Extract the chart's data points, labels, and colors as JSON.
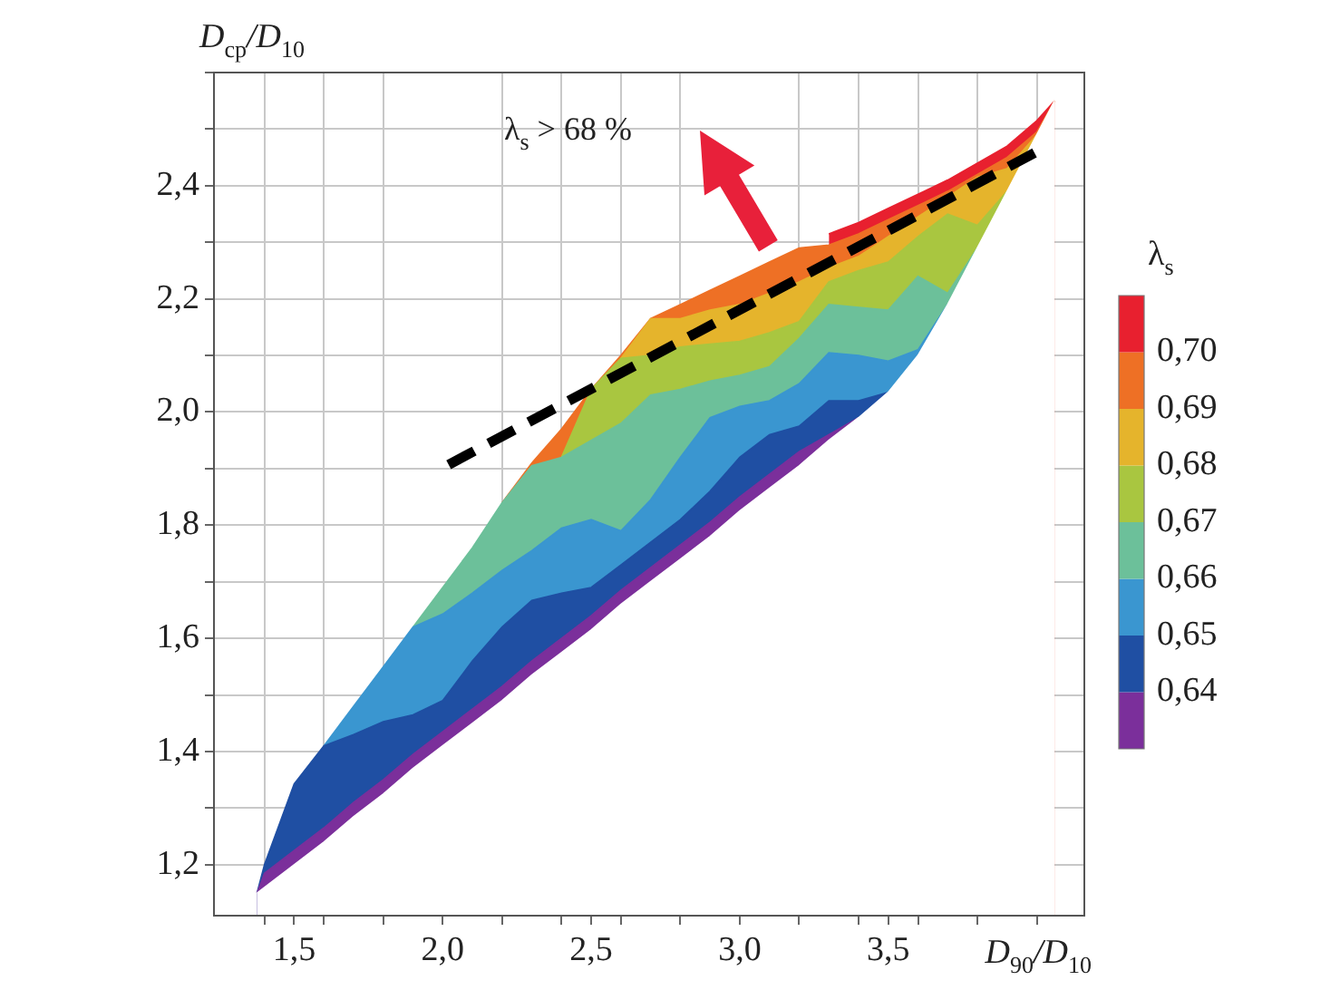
{
  "chart_data": {
    "type": "area",
    "xlabel": "D$_{90}$/D$_{10}$",
    "ylabel": "D$_{cp}$/D$_{10}$",
    "clabel": "λ$_{s}$",
    "annotations": [
      "λ$_{s}$ > 68 %"
    ],
    "x": [
      1.375,
      1.4,
      1.5,
      1.6,
      1.7,
      1.8,
      1.9,
      2.0,
      2.1,
      2.2,
      2.3,
      2.4,
      2.5,
      2.6,
      2.7,
      2.8,
      2.9,
      3.0,
      3.1,
      3.2,
      3.3,
      3.4,
      3.5,
      3.6,
      3.7,
      3.8,
      3.9,
      4.0,
      4.06
    ],
    "series": [
      {
        "color": "#ffffff",
        "values": [
          1.15,
          1.16,
          1.2,
          1.24,
          1.285,
          1.325,
          1.37,
          1.41,
          1.45,
          1.49,
          1.535,
          1.575,
          1.615,
          1.66,
          1.7,
          1.74,
          1.78,
          1.825,
          1.865,
          1.905,
          1.95,
          1.99,
          2.035,
          2.1,
          2.19,
          2.29,
          2.39,
          2.49,
          2.55
        ]
      },
      {
        "color": "#7b2f9b",
        "values": [
          1.15,
          1.185,
          1.225,
          1.265,
          1.31,
          1.35,
          1.395,
          1.435,
          1.475,
          1.515,
          1.56,
          1.6,
          1.64,
          1.685,
          1.725,
          1.765,
          1.805,
          1.85,
          1.89,
          1.93,
          1.96,
          1.99,
          null,
          null,
          null,
          null,
          null,
          null,
          null
        ]
      },
      {
        "color": "#1f4fa3",
        "values": [
          1.15,
          1.2,
          1.343,
          1.41,
          1.43,
          1.453,
          1.465,
          1.49,
          1.56,
          1.62,
          1.667,
          1.68,
          1.69,
          1.73,
          1.77,
          1.81,
          1.86,
          1.92,
          1.96,
          1.975,
          2.02,
          2.02,
          2.035,
          null,
          null,
          null,
          null,
          null,
          null
        ]
      },
      {
        "color": "#3a96d0",
        "values": [
          null,
          null,
          null,
          1.41,
          1.48,
          1.55,
          1.62,
          1.643,
          1.68,
          1.72,
          1.755,
          1.795,
          1.81,
          1.79,
          1.845,
          1.92,
          1.99,
          2.01,
          2.02,
          2.05,
          2.105,
          2.1,
          2.09,
          2.11,
          2.19,
          null,
          null,
          null,
          null
        ]
      },
      {
        "color": "#6cc09a",
        "values": [
          null,
          null,
          null,
          null,
          null,
          null,
          1.62,
          1.69,
          1.76,
          1.84,
          1.905,
          1.92,
          1.95,
          1.98,
          2.03,
          2.04,
          2.055,
          2.065,
          2.08,
          2.13,
          2.19,
          2.185,
          2.18,
          2.24,
          2.21,
          2.29,
          null,
          null,
          null
        ]
      },
      {
        "color": "#a9c640",
        "values": [
          null,
          null,
          null,
          null,
          null,
          null,
          null,
          null,
          null,
          null,
          null,
          1.92,
          2.04,
          2.095,
          2.1,
          2.115,
          2.12,
          2.125,
          2.14,
          2.16,
          2.23,
          2.25,
          2.265,
          2.31,
          2.35,
          2.33,
          2.39,
          null,
          null
        ]
      },
      {
        "color": "#e5b42c",
        "values": [
          null,
          null,
          null,
          null,
          null,
          null,
          null,
          null,
          null,
          null,
          null,
          null,
          null,
          2.095,
          2.165,
          2.165,
          2.18,
          2.19,
          2.21,
          2.23,
          2.255,
          2.275,
          2.31,
          2.345,
          2.38,
          2.415,
          2.43,
          2.49,
          null
        ]
      },
      {
        "color": "#ee7025",
        "values": [
          null,
          null,
          null,
          null,
          null,
          null,
          null,
          null,
          null,
          1.84,
          1.91,
          1.97,
          2.04,
          2.1,
          2.165,
          2.19,
          2.215,
          2.24,
          2.265,
          2.29,
          2.295,
          2.315,
          2.34,
          2.365,
          2.39,
          2.42,
          2.45,
          2.495,
          2.55
        ]
      },
      {
        "color": "#e8202f",
        "values": [
          null,
          null,
          null,
          null,
          null,
          null,
          null,
          null,
          null,
          null,
          null,
          null,
          null,
          null,
          null,
          null,
          null,
          null,
          null,
          null,
          2.315,
          2.335,
          2.36,
          2.385,
          2.41,
          2.44,
          2.47,
          2.515,
          2.55
        ]
      },
      {
        "type": "line",
        "color": "#000000",
        "line_style": "dashed",
        "x": [
          2.02,
          4.0
        ],
        "values": [
          1.907,
          2.46
        ]
      }
    ],
    "xlim": [
      1.23,
      4.16
    ],
    "xticks": [
      {
        "value": 1.4,
        "label": null
      },
      {
        "value": 1.5,
        "label": "1,5"
      },
      {
        "value": 1.6,
        "label": null
      },
      {
        "value": 1.8,
        "label": null
      },
      {
        "value": 2.0,
        "label": "2,0"
      },
      {
        "value": 2.2,
        "label": null
      },
      {
        "value": 2.4,
        "label": null
      },
      {
        "value": 2.5,
        "label": "2,5"
      },
      {
        "value": 2.6,
        "label": null
      },
      {
        "value": 2.8,
        "label": null
      },
      {
        "value": 3.0,
        "label": "3,0"
      },
      {
        "value": 3.2,
        "label": null
      },
      {
        "value": 3.4,
        "label": null
      },
      {
        "value": 3.5,
        "label": "3,5"
      },
      {
        "value": 3.6,
        "label": null
      },
      {
        "value": 3.8,
        "label": null
      },
      {
        "value": 4.0,
        "label": null
      }
    ],
    "ylim": [
      1.11,
      2.6
    ],
    "yticks": [
      {
        "value": 1.2,
        "label": "1,2"
      },
      {
        "value": 1.3,
        "label": null
      },
      {
        "value": 1.4,
        "label": "1,4"
      },
      {
        "value": 1.5,
        "label": null
      },
      {
        "value": 1.6,
        "label": "1,6"
      },
      {
        "value": 1.7,
        "label": null
      },
      {
        "value": 1.8,
        "label": "1,8"
      },
      {
        "value": 1.9,
        "label": null
      },
      {
        "value": 2.0,
        "label": "2,0"
      },
      {
        "value": 2.1,
        "label": null
      },
      {
        "value": 2.2,
        "label": "2,2"
      },
      {
        "value": 2.3,
        "label": null
      },
      {
        "value": 2.4,
        "label": "2,4"
      },
      {
        "value": 2.5,
        "label": null
      },
      {
        "value": 2.6,
        "label": null
      }
    ],
    "clim": [
      0.63,
      0.71
    ],
    "cticks": [
      {
        "value": 0.64,
        "label": "0,64"
      },
      {
        "value": 0.65,
        "label": "0,65"
      },
      {
        "value": 0.66,
        "label": "0,66"
      },
      {
        "value": 0.67,
        "label": "0,67"
      },
      {
        "value": 0.68,
        "label": "0,68"
      },
      {
        "value": 0.69,
        "label": "0,69"
      },
      {
        "value": 0.7,
        "label": "0,70"
      }
    ],
    "grid": true,
    "legend": false
  }
}
